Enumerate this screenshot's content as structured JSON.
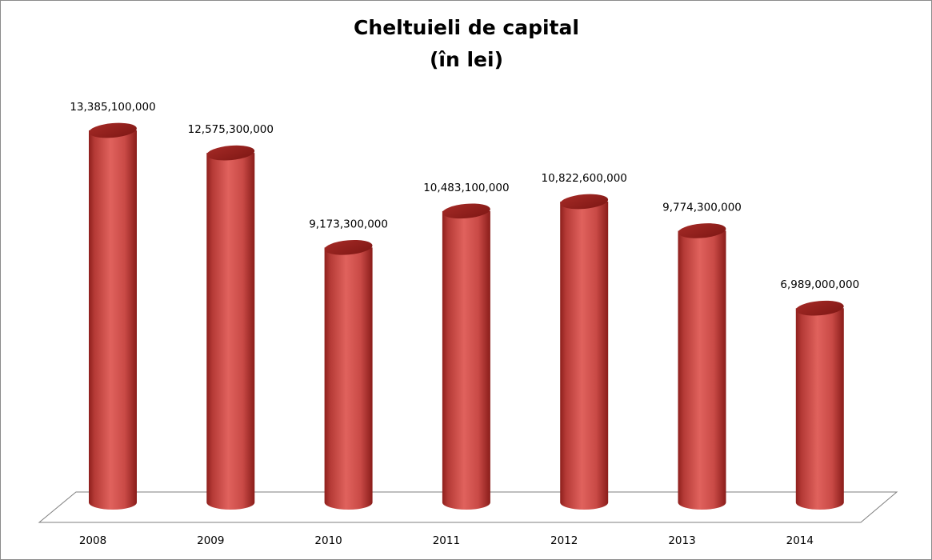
{
  "chart_data": {
    "type": "bar",
    "title": "Cheltuieli de capital",
    "subtitle": "(în lei)",
    "categories": [
      "2008",
      "2009",
      "2010",
      "2011",
      "2012",
      "2013",
      "2014"
    ],
    "values": [
      13385100000,
      12575300000,
      9173300000,
      10483100000,
      10822600000,
      9774300000,
      6989000000
    ],
    "value_labels": [
      "13,385,100,000",
      "12,575,300,000",
      "9,173,300,000",
      "10,483,100,000",
      "10,822,600,000",
      "9,774,300,000",
      "6,989,000,000"
    ],
    "bar_shape": "cylinder",
    "bar_color": "#c0504d",
    "grid": false,
    "legend": "none",
    "ylim": [
      0,
      15000000000
    ]
  }
}
